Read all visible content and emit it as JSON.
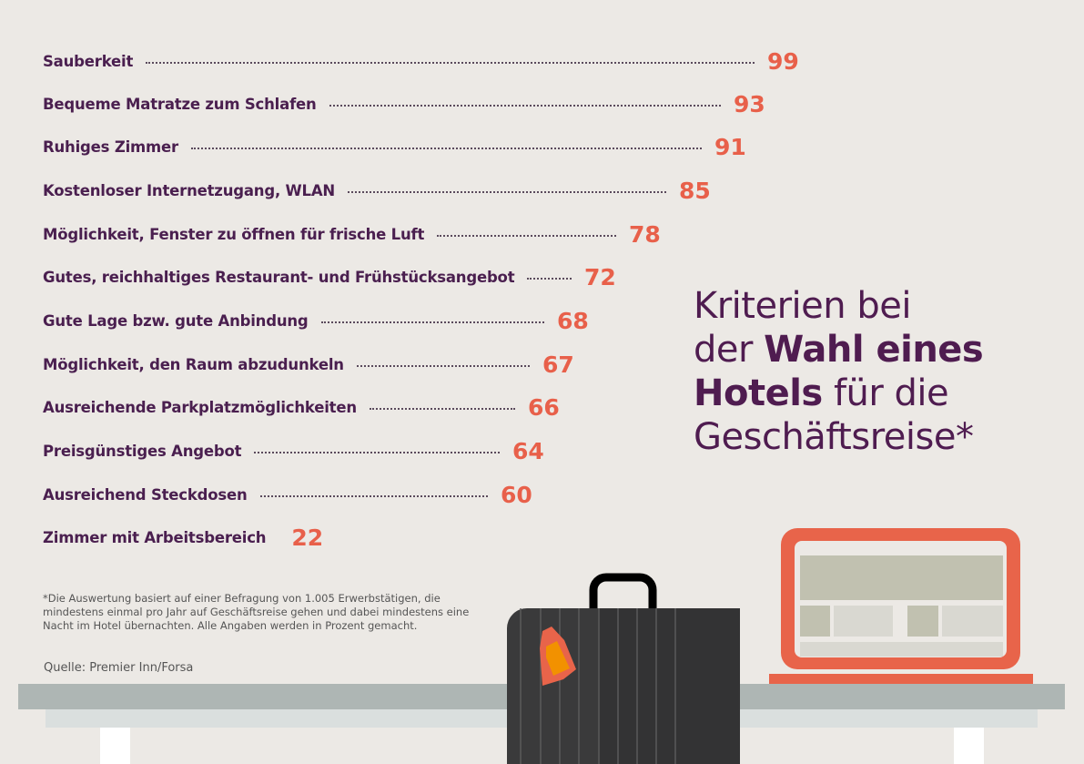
{
  "chart_data": {
    "type": "table",
    "title": [
      "Kriterien bei",
      "der ",
      "Wahl eines",
      "Hotels",
      " für die",
      "Geschäftsreise*"
    ],
    "categories": [
      "Sauberkeit",
      "Bequeme Matratze zum Schlafen",
      "Ruhiges Zimmer",
      "Kostenloser Internetzugang, WLAN",
      "Möglichkeit, Fenster zu öffnen für frische Luft",
      "Gutes, reichhaltiges Restaurant- und Frühstücksangebot",
      "Gute Lage bzw. gute Anbindung",
      "Möglichkeit, den Raum abzudunkeln",
      "Ausreichende Parkplatzmöglichkeiten",
      "Preisgünstiges Angebot",
      "Ausreichend Steckdosen",
      "Zimmer mit Arbeitsbereich"
    ],
    "values": [
      99,
      93,
      91,
      85,
      78,
      72,
      68,
      67,
      66,
      64,
      60,
      22
    ]
  },
  "footnote": "*Die Auswertung basiert auf einer Befragung von 1.005 Erwerbstätigen, die mindestens einmal pro Jahr auf Geschäftsreise gehen und dabei mindestens eine Nacht im Hotel übernachten. Alle Angaben werden in Prozent gemacht.",
  "source": "Quelle: Premier Inn/Forsa",
  "colors": {
    "background": "#ECE9E5",
    "label": "#4A1F4F",
    "value": "#E8604A",
    "title": "#4F1C50"
  }
}
